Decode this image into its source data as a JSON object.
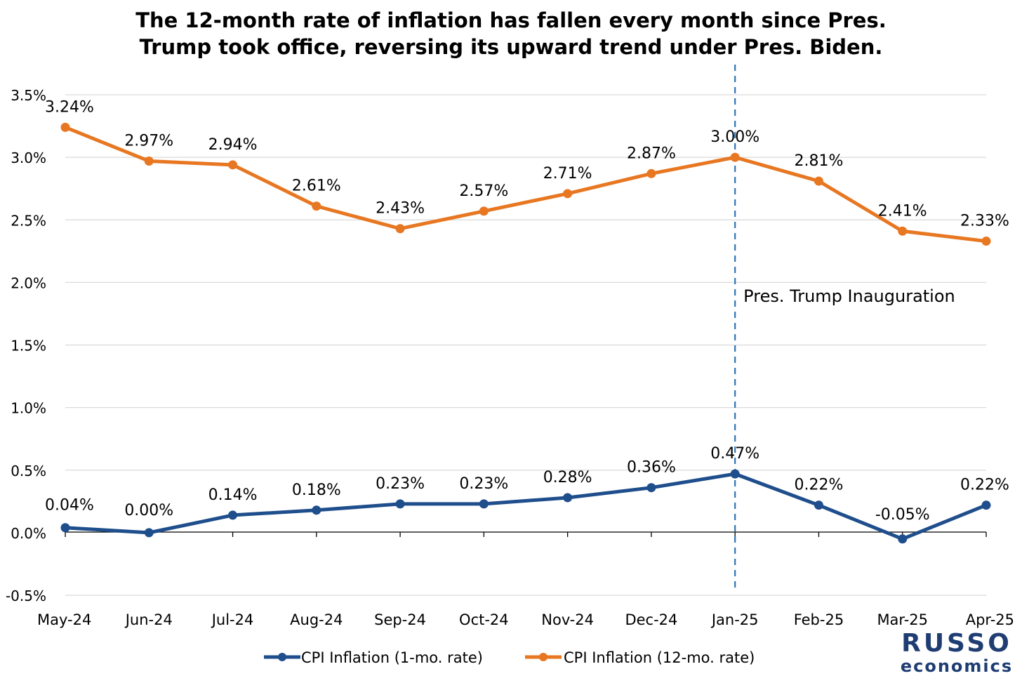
{
  "chart_data": {
    "type": "line",
    "title": "The 12-month rate of inflation has fallen every month since Pres. Trump took office, reversing its upward trend under Pres. Biden.",
    "title_lines": [
      "The 12-month rate of inflation has fallen every month since Pres.",
      "Trump took office, reversing its upward trend under Pres. Biden."
    ],
    "categories": [
      "May-24",
      "Jun-24",
      "Jul-24",
      "Aug-24",
      "Sep-24",
      "Oct-24",
      "Nov-24",
      "Dec-24",
      "Jan-25",
      "Feb-25",
      "Mar-25",
      "Apr-25"
    ],
    "series": [
      {
        "name": "CPI Inflation (1-mo. rate)",
        "color": "#1f4e8c",
        "values": [
          0.04,
          0.0,
          0.14,
          0.18,
          0.23,
          0.23,
          0.28,
          0.36,
          0.47,
          0.22,
          -0.05,
          0.22
        ],
        "labels": [
          "0.04%",
          "0.00%",
          "0.14%",
          "0.18%",
          "0.23%",
          "0.23%",
          "0.28%",
          "0.36%",
          "0.47%",
          "0.22%",
          "-0.05%",
          "0.22%"
        ]
      },
      {
        "name": "CPI Inflation (12-mo. rate)",
        "color": "#e87722",
        "values": [
          3.24,
          2.97,
          2.94,
          2.61,
          2.43,
          2.57,
          2.71,
          2.87,
          3.0,
          2.81,
          2.41,
          2.33
        ],
        "labels": [
          "3.24%",
          "2.97%",
          "2.94%",
          "2.61%",
          "2.43%",
          "2.57%",
          "2.71%",
          "2.87%",
          "3.00%",
          "2.81%",
          "2.41%",
          "2.33%"
        ]
      }
    ],
    "xlabel": "",
    "ylabel": "",
    "ylim": [
      -0.5,
      3.5
    ],
    "yticks": [
      -0.5,
      0.0,
      0.5,
      1.0,
      1.5,
      2.0,
      2.5,
      3.0,
      3.5
    ],
    "ytick_labels": [
      "-0.5%",
      "0.0%",
      "0.5%",
      "1.0%",
      "1.5%",
      "2.0%",
      "2.5%",
      "3.0%",
      "3.5%"
    ],
    "grid": true,
    "legend": "bottom",
    "annotation": {
      "text": "Pres. Trump Inauguration",
      "at_category": "Jan-25",
      "color": "#2e75b6",
      "style": "dashed vertical line"
    }
  },
  "branding": {
    "logo_top": "RUSSO",
    "logo_bottom": "economics",
    "color": "#1f3d73"
  }
}
